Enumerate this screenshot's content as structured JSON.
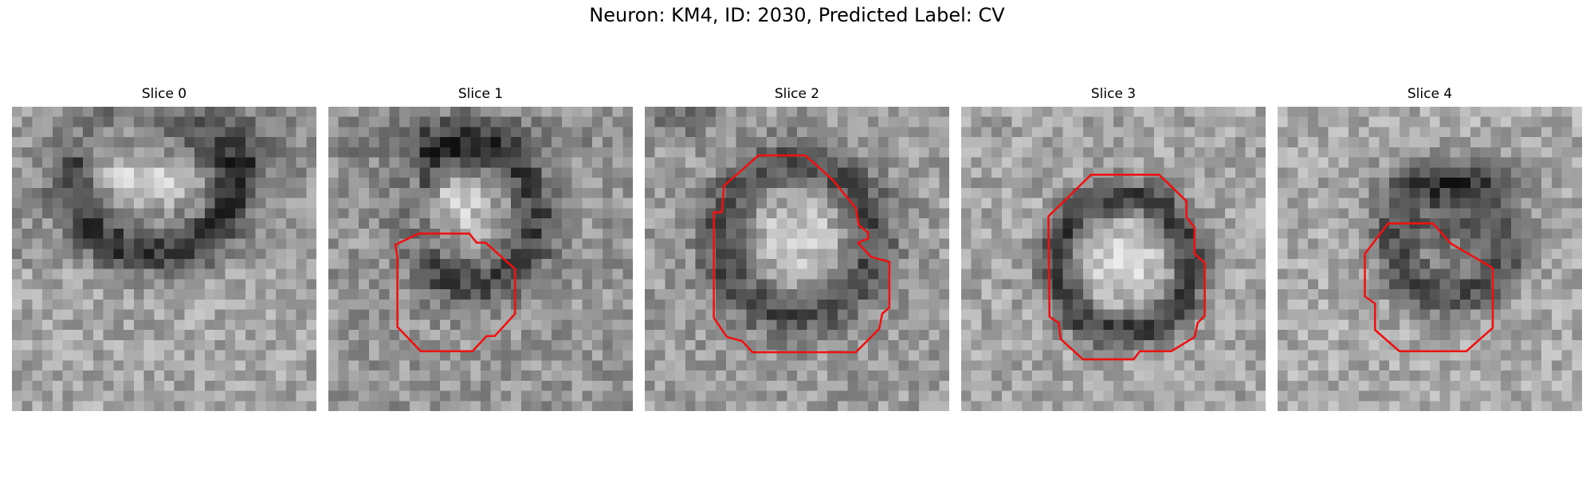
{
  "figure": {
    "title": "Neuron: KM4, ID: 2030, Predicted Label: CV"
  },
  "panels": [
    {
      "title": "Slice 0",
      "outline": false
    },
    {
      "title": "Slice 1",
      "outline": true
    },
    {
      "title": "Slice 2",
      "outline": true
    },
    {
      "title": "Slice 3",
      "outline": true
    },
    {
      "title": "Slice 4",
      "outline": true
    }
  ],
  "colors": {
    "outline": "#ee1111",
    "image_colormap": "grayscale"
  }
}
